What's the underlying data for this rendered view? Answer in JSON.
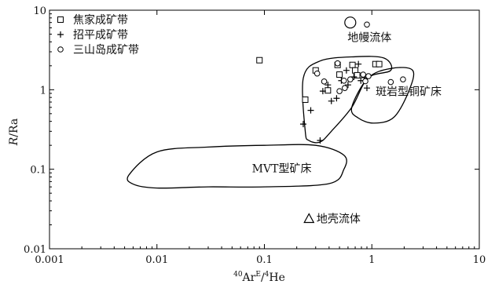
{
  "chart_data": {
    "type": "scatter",
    "xscale": "log",
    "yscale": "log",
    "xlim": [
      0.001,
      10
    ],
    "ylim": [
      0.01,
      10
    ],
    "xticks": [
      "0.001",
      "0.01",
      "0.1",
      "1",
      "10"
    ],
    "yticks": [
      "0.01",
      "0.1",
      "1",
      "10"
    ],
    "xlabel": {
      "pre": "40",
      "a": "Ar",
      "sup": "E",
      "b": "/",
      "pre2": "4",
      "c": "He"
    },
    "ylabel": {
      "italic": "R",
      "rest": "/Ra"
    },
    "legend_placement": "top-left",
    "series": [
      {
        "name": "焦家成矿带",
        "marker": "square",
        "points": [
          [
            0.09,
            2.35
          ],
          [
            0.24,
            0.75
          ],
          [
            0.3,
            1.75
          ],
          [
            0.39,
            0.98
          ],
          [
            0.48,
            2.05
          ],
          [
            0.5,
            1.55
          ],
          [
            0.66,
            2.05
          ],
          [
            0.7,
            1.75
          ],
          [
            0.73,
            1.52
          ],
          [
            1.08,
            2.1
          ],
          [
            1.17,
            2.1
          ]
        ]
      },
      {
        "name": "招平成矿带",
        "marker": "plus",
        "points": [
          [
            0.23,
            0.37
          ],
          [
            0.27,
            0.55
          ],
          [
            0.33,
            0.23
          ],
          [
            0.35,
            0.96
          ],
          [
            0.39,
            1.15
          ],
          [
            0.42,
            0.72
          ],
          [
            0.47,
            0.78
          ],
          [
            0.52,
            1.3
          ],
          [
            0.58,
            1.75
          ],
          [
            0.6,
            1.15
          ],
          [
            0.68,
            1.45
          ],
          [
            0.75,
            2.1
          ],
          [
            0.79,
            1.3
          ],
          [
            0.85,
            1.42
          ],
          [
            0.9,
            1.05
          ]
        ]
      },
      {
        "name": "三山岛成矿带",
        "marker": "circle",
        "points": [
          [
            0.31,
            1.6
          ],
          [
            0.36,
            1.27
          ],
          [
            0.48,
            2.15
          ],
          [
            0.5,
            0.96
          ],
          [
            0.55,
            1.3
          ],
          [
            0.56,
            1.05
          ],
          [
            0.63,
            1.35
          ],
          [
            0.83,
            1.55
          ],
          [
            0.87,
            1.28
          ],
          [
            0.93,
            1.48
          ],
          [
            0.9,
            6.6
          ],
          [
            1.5,
            1.25
          ],
          [
            1.95,
            1.35
          ]
        ]
      }
    ],
    "regions": [
      {
        "label": "MVT型矿床",
        "label_at": [
          0.145,
          0.092
        ],
        "outline": [
          [
            0.0055,
            0.085
          ],
          [
            0.01,
            0.165
          ],
          [
            0.03,
            0.19
          ],
          [
            0.1,
            0.2
          ],
          [
            0.3,
            0.2
          ],
          [
            0.55,
            0.15
          ],
          [
            0.55,
            0.1
          ],
          [
            0.4,
            0.066
          ],
          [
            0.1,
            0.06
          ],
          [
            0.03,
            0.06
          ],
          [
            0.01,
            0.058
          ],
          [
            0.006,
            0.065
          ]
        ]
      },
      {
        "label": "斑岩型铜矿床",
        "label_at": [
          2.2,
          0.85
        ],
        "outline": [
          [
            0.65,
            0.6
          ],
          [
            0.92,
            1.4
          ],
          [
            1.5,
            1.85
          ],
          [
            2.4,
            1.75
          ],
          [
            2.2,
            0.95
          ],
          [
            1.6,
            0.45
          ],
          [
            1.05,
            0.38
          ],
          [
            0.75,
            0.44
          ]
        ]
      },
      {
        "label": "",
        "outline": [
          [
            0.24,
            0.3
          ],
          [
            0.23,
            1.4
          ],
          [
            0.33,
            2.3
          ],
          [
            0.7,
            2.6
          ],
          [
            1.3,
            2.5
          ],
          [
            1.5,
            1.75
          ],
          [
            0.92,
            1.4
          ],
          [
            0.65,
            0.6
          ],
          [
            0.42,
            0.3
          ],
          [
            0.33,
            0.22
          ],
          [
            0.26,
            0.23
          ]
        ]
      }
    ],
    "annotations": [
      {
        "label": "地幔流体",
        "marker": "circle-large",
        "point": [
          0.63,
          7.0
        ],
        "label_at": [
          0.95,
          4.55
        ]
      },
      {
        "label": "地壳流体",
        "marker": "triangle",
        "point": [
          0.26,
          0.024
        ],
        "label_at": [
          0.49,
          0.024
        ]
      }
    ]
  }
}
